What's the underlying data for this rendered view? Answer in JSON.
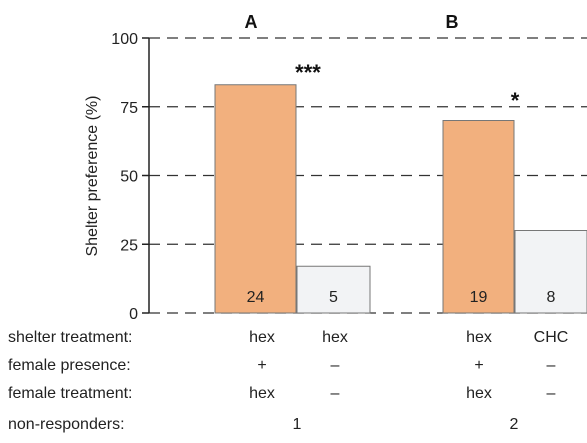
{
  "chart_data": {
    "type": "bar",
    "ylabel": "Shelter preference (%)",
    "ylim": [
      0,
      100
    ],
    "yticks": [
      0,
      25,
      50,
      75,
      100
    ],
    "grid": "dashed horizontal",
    "colors": {
      "primary": "#f2b07e",
      "secondary": "#f2f3f5",
      "edge": "#777777",
      "axis": "#222222"
    },
    "panels": [
      {
        "label": "A",
        "significance": "***",
        "bars": [
          {
            "value": 83,
            "count": "24",
            "color": "primary"
          },
          {
            "value": 17,
            "count": "5",
            "color": "secondary"
          }
        ]
      },
      {
        "label": "B",
        "significance": "*",
        "bars": [
          {
            "value": 70,
            "count": "19",
            "color": "primary"
          },
          {
            "value": 30,
            "count": "8",
            "color": "secondary"
          }
        ]
      }
    ]
  },
  "table": {
    "rows": [
      {
        "label": "shelter treatment:",
        "cells": [
          "hex",
          "hex",
          "hex",
          "CHC"
        ]
      },
      {
        "label": "female presence:",
        "cells": [
          "+",
          "–",
          "+",
          "–"
        ]
      },
      {
        "label": "female treatment:",
        "cells": [
          "hex",
          "–",
          "hex",
          "–"
        ]
      }
    ],
    "nonresponders": {
      "label": "non-responders:",
      "values": [
        "1",
        "2"
      ]
    }
  }
}
